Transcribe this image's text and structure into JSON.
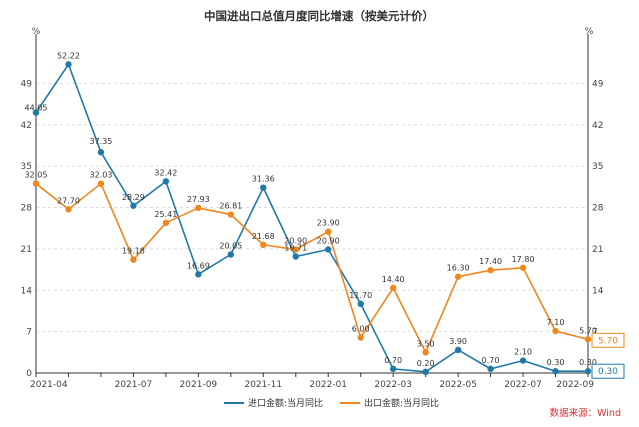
{
  "colors": {
    "import": "#2079a8",
    "export": "#f0871e",
    "grid": "#dddddd",
    "source": "#e03030"
  },
  "chart_data": {
    "type": "line",
    "title": "中国进出口总值月度同比增速（按美元计价）",
    "unit_left": "%",
    "unit_right": "%",
    "ylim": [
      0,
      56
    ],
    "yticks": [
      "0",
      "7",
      "14",
      "21",
      "28",
      "35",
      "42",
      "49"
    ],
    "x": [
      "2021-04",
      "2021-05",
      "2021-06",
      "2021-07",
      "2021-08",
      "2021-09",
      "2021-10",
      "2021-11",
      "2021-12",
      "2022-01",
      "2022-02",
      "2022-03",
      "2022-04",
      "2022-05",
      "2022-06",
      "2022-07",
      "2022-08",
      "2022-09"
    ],
    "xtick_labels": [
      "2021-04",
      "2021-07",
      "2021-09",
      "2021-11",
      "2022-01",
      "2022-03",
      "2022-05",
      "2022-07",
      "2022-09"
    ],
    "grid": "horizontal dashed",
    "legend_position": "bottom",
    "series": [
      {
        "name": "进口金额:当月同比",
        "values": [
          44.05,
          52.22,
          37.35,
          28.29,
          32.42,
          16.69,
          20.05,
          31.36,
          19.71,
          20.9,
          11.7,
          0.7,
          0.2,
          3.9,
          0.7,
          2.1,
          0.3,
          0.3
        ],
        "labels": [
          "44.05",
          "52.22",
          "37.35",
          "28.29",
          "32.42",
          "16.69",
          "20.05",
          "31.36",
          "19.71",
          "20.90",
          "11.70",
          "0.70",
          "0.20",
          "3.90",
          "0.70",
          "2.10",
          "0.30",
          "0.30"
        ],
        "end_value": "0.30"
      },
      {
        "name": "出口金额:当月同比",
        "values": [
          32.05,
          27.7,
          32.03,
          19.18,
          25.41,
          27.93,
          26.81,
          21.68,
          20.9,
          23.9,
          6.0,
          14.4,
          3.5,
          16.3,
          17.4,
          17.8,
          7.1,
          5.7
        ],
        "labels": [
          "32.05",
          "27.70",
          "32.03",
          "19.18",
          "25.41",
          "27.93",
          "26.81",
          "21.68",
          "20.90",
          "23.90",
          "6.00",
          "14.40",
          "3.50",
          "16.30",
          "17.40",
          "17.80",
          "7.10",
          "5.70"
        ],
        "end_value": "5.70"
      }
    ],
    "source": "数据来源：Wind"
  }
}
